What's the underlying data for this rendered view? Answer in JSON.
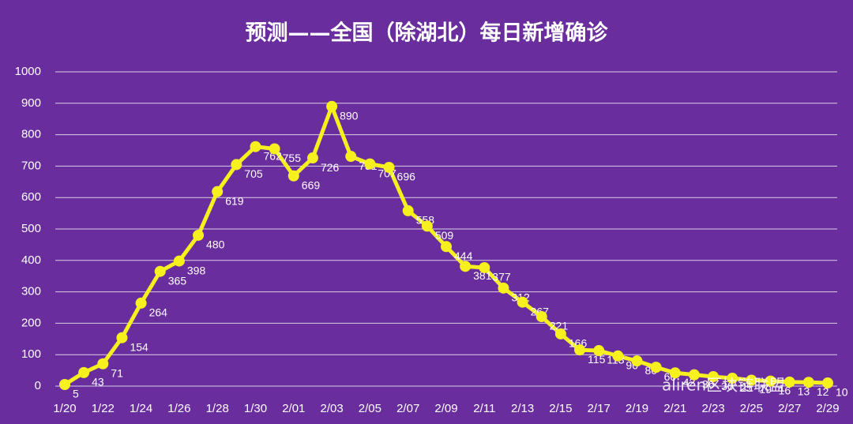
{
  "chart_data": {
    "type": "line",
    "title": "预测——全国（除湖北）每日新增确诊",
    "categories": [
      "1/20",
      null,
      "1/22",
      null,
      "1/24",
      null,
      "1/26",
      null,
      "1/28",
      null,
      "1/30",
      null,
      "2/01",
      null,
      "2/03",
      null,
      "2/05",
      null,
      "2/07",
      null,
      "2/09",
      null,
      "2/11",
      null,
      "2/13",
      null,
      "2/15",
      null,
      "2/17",
      null,
      "2/19",
      null,
      "2/21",
      null,
      "2/23",
      null,
      "2/25",
      null,
      "2/27",
      null,
      "2/29"
    ],
    "series": [
      {
        "name": "每日新增确诊",
        "color": "#f7f01f",
        "values": [
          5,
          43,
          71,
          154,
          264,
          365,
          398,
          480,
          619,
          705,
          762,
          755,
          669,
          726,
          890,
          731,
          707,
          696,
          558,
          509,
          444,
          381,
          377,
          312,
          267,
          221,
          166,
          115,
          113,
          96,
          80,
          60,
          42,
          36,
          30,
          25,
          19,
          16,
          13,
          12,
          10
        ]
      }
    ],
    "ylim": [
      0,
      1000
    ],
    "yticks": [
      0,
      100,
      200,
      300,
      400,
      500,
      600,
      700,
      800,
      900,
      1000
    ],
    "grid": true,
    "watermark": "aliren区块链联盟"
  }
}
